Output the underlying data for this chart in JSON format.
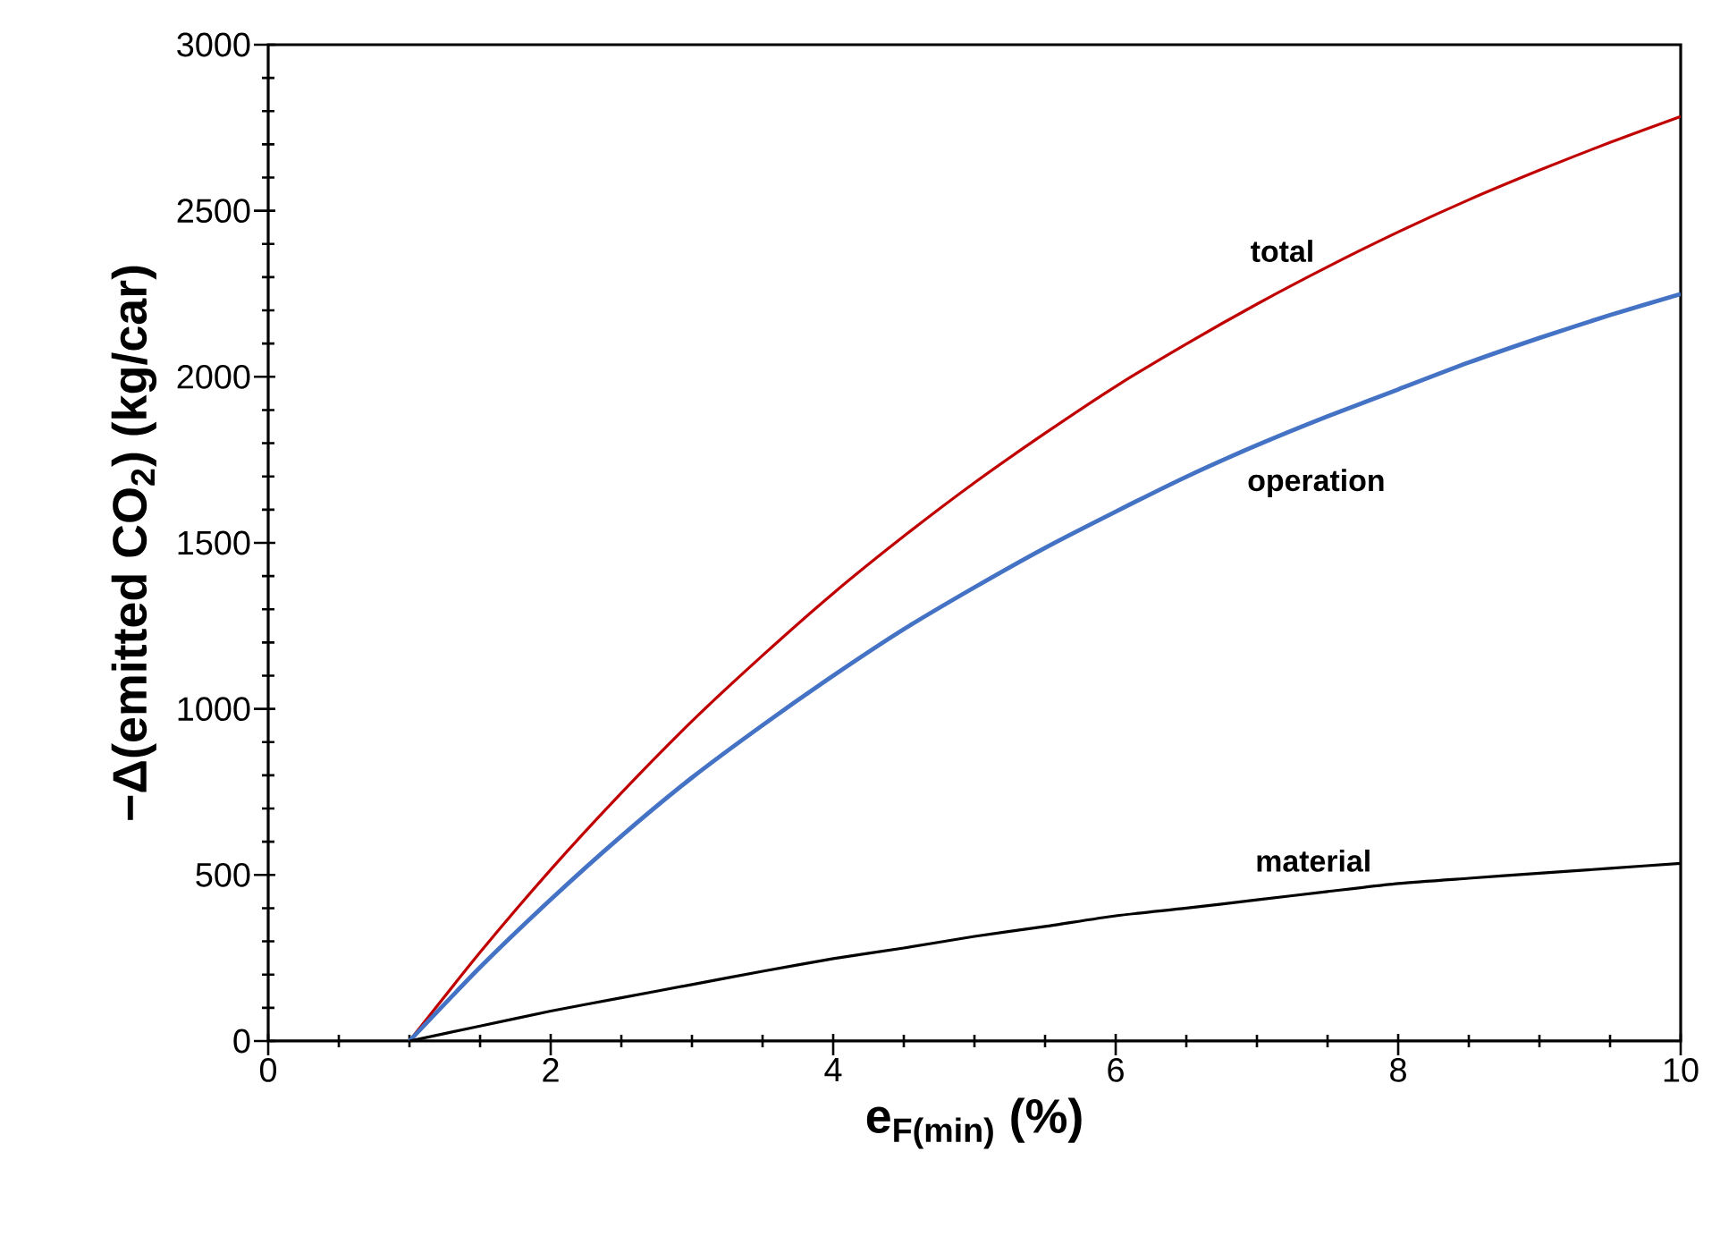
{
  "chart_data": {
    "type": "line",
    "xlabel": "**e$_{F(min)}$ (%)**",
    "ylabel": "**−Δ(emitted CO$_{2}$) (kg/car)**",
    "xlim": [
      0,
      10
    ],
    "ylim": [
      0,
      3000
    ],
    "xticks": [
      0,
      2,
      4,
      6,
      8,
      10
    ],
    "yticks": [
      0,
      500,
      1000,
      1500,
      2000,
      2500,
      3000
    ],
    "marker": "none",
    "line_style": "solid",
    "series": [
      {
        "color": "#c00000",
        "x": [
          1,
          1.5,
          2,
          2.5,
          3,
          3.5,
          4,
          4.5,
          5,
          5.5,
          6,
          6.5,
          7,
          7.5,
          8,
          8.5,
          9,
          9.5,
          10
        ],
        "values": [
          0,
          267,
          516,
          747,
          963,
          1161,
          1348,
          1520,
          1681,
          1830,
          1971,
          2099,
          2219,
          2331,
          2436,
          2533,
          2622,
          2706,
          2784
        ]
      },
      {
        "color": "#4472c4",
        "x": [
          1,
          1.5,
          2,
          2.5,
          3,
          3.5,
          4,
          4.5,
          5,
          5.5,
          6,
          6.5,
          7,
          7.5,
          8,
          8.5,
          9,
          9.5,
          10
        ],
        "values": [
          0,
          222,
          426,
          617,
          793,
          951,
          1100,
          1240,
          1366,
          1485,
          1594,
          1699,
          1794,
          1881,
          1962,
          2043,
          2117,
          2186,
          2249
        ]
      },
      {
        "color": "#000000",
        "x": [
          1,
          1.5,
          2,
          2.5,
          3,
          3.5,
          4,
          4.5,
          5,
          5.5,
          6,
          6.5,
          7,
          7.5,
          8,
          8.5,
          9,
          9.5,
          10
        ],
        "values": [
          0,
          45,
          90,
          130,
          170,
          210,
          248,
          280,
          315,
          345,
          377,
          400,
          425,
          450,
          474,
          490,
          505,
          520,
          535
        ]
      }
    ],
    "annotations": [
      "total",
      "operation",
      "material"
    ]
  }
}
